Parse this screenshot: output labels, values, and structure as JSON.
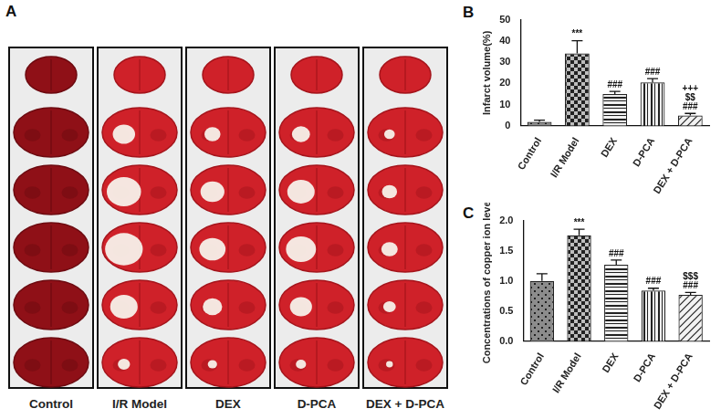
{
  "figure": {
    "panel_a": {
      "panel_label": "A",
      "type": "image",
      "groups": [
        "Control",
        "I/R Model",
        "DEX",
        "D-PCA",
        "DEX + D-PCA"
      ]
    }
  },
  "chart_data": [
    {
      "panel_label": "B",
      "type": "bar",
      "categories": [
        "Control",
        "I/R Model",
        "DEX",
        "D-PCA",
        "DEX + D-PCA"
      ],
      "values": [
        1.8,
        34.2,
        15,
        20.5,
        4.8
      ],
      "errors": [
        0.8,
        6,
        1.2,
        1.8,
        1
      ],
      "significance": [
        [],
        [
          "***"
        ],
        [
          "###"
        ],
        [
          "###"
        ],
        [
          "+++",
          "$$",
          "###"
        ]
      ],
      "colors": [
        "#8c8c8c",
        "#bdbdbd",
        "#f2f2f2",
        "#f2f2f2",
        "#f2f2f2"
      ],
      "y_label": "Infarct volume(%)",
      "ylim": [
        0,
        50
      ],
      "yticks": [
        0,
        10,
        20,
        30,
        40,
        50
      ],
      "grid": false
    },
    {
      "panel_label": "C",
      "type": "bar",
      "categories": [
        "Control",
        "I/R Model",
        "DEX",
        "D-PCA",
        "DEX + D-PCA"
      ],
      "values": [
        1.0,
        1.76,
        1.27,
        0.84,
        0.77
      ],
      "errors": [
        0.12,
        0.1,
        0.08,
        0.04,
        0.04
      ],
      "significance": [
        [],
        [
          "***"
        ],
        [
          "###"
        ],
        [
          "###"
        ],
        [
          "$$$",
          "###"
        ]
      ],
      "colors": [
        "#8c8c8c",
        "#bdbdbd",
        "#f2f2f2",
        "#f2f2f2",
        "#f2f2f2"
      ],
      "y_label": "Concentrations of copper ion level",
      "ylim": [
        0,
        2
      ],
      "yticks": [
        {
          "value": 0,
          "label": "0.0"
        },
        {
          "value": 0.5,
          "label": "0.5"
        },
        {
          "value": 1,
          "label": "1.0"
        },
        {
          "value": 1.5,
          "label": "1.5"
        },
        {
          "value": 2,
          "label": "2.0"
        }
      ],
      "grid": false
    }
  ]
}
